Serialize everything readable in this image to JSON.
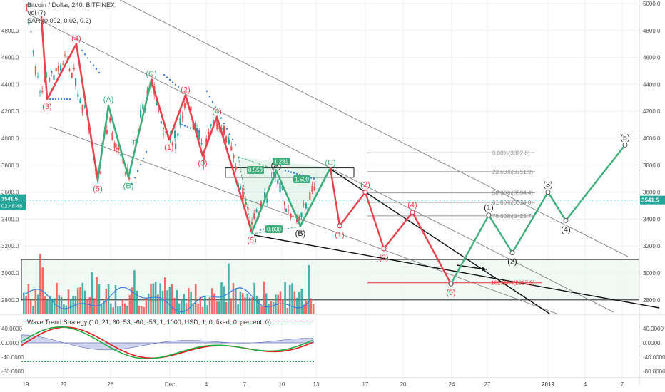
{
  "header": {
    "symbol": "Bitcoin / Dollar, 240, BITFINEX",
    "vol": "Vol (7)",
    "sar": "SAR (0.002, 0.02, 0.2)",
    "wavetrend": "Wave Trend Strategy (10, 21, 60, 53, -60, -53, 1, 1000, USD, 1, 0, fixed, 0, percent, 0)"
  },
  "colors": {
    "impulse_red": "#e8434d",
    "correction_green": "#3fae7a",
    "sar": "#3b7ddd",
    "channel": "#8c8c8c",
    "price_line": "#26a69a",
    "fib_target": "#e53935",
    "volume_up": "#26a69a",
    "volume_down": "#ef5350",
    "wt1": "#1faa3f",
    "wt2": "#e01b1b"
  },
  "chart_data": [
    {
      "type": "line",
      "title": "Bitcoin / Dollar, 240, BITFINEX",
      "y_axis_ticks": [
        "5000.0",
        "4800.0",
        "4600.0",
        "4400.0",
        "4200.0",
        "4000.0",
        "3800.0",
        "3600.0",
        "3400.0",
        "3200.0",
        "3000.0",
        "2800.0"
      ],
      "x_axis_ticks": [
        "19",
        "22",
        "26",
        "Dec",
        "4",
        "7",
        "10",
        "13",
        "17",
        "20",
        "24",
        "27",
        "2019",
        "4",
        "7"
      ],
      "ylim": [
        2650,
        5030
      ],
      "last_price": {
        "price": "3541.5",
        "countdown": "02:48:48",
        "value": 3541.5
      },
      "fib_levels": [
        {
          "label": "0.00%(3892.8)",
          "value": 3892.8
        },
        {
          "label": "23.60%(3751.9)",
          "value": 3751.9
        },
        {
          "label": "50.00%(3594.4)",
          "value": 3594.4
        },
        {
          "label": "61.80%(3524.0)",
          "value": 3524.0
        },
        {
          "label": "78.60%(3423.7)",
          "value": 3423.7
        },
        {
          "label": "161.80%(2927.3)",
          "value": 2927.3
        }
      ],
      "historical_wave_labels": [
        {
          "label": "(4)",
          "value": 4700
        },
        {
          "label": "(3)",
          "value": 4290
        },
        {
          "label": "(5)",
          "value": 3680
        },
        {
          "label": "(A)",
          "value": 4250
        },
        {
          "label": "(B)",
          "value": 3700
        },
        {
          "label": "(C)",
          "value": 4440
        },
        {
          "label": "(1)",
          "value": 3990
        },
        {
          "label": "(2)",
          "value": 4320
        },
        {
          "label": "(3)",
          "value": 3870
        },
        {
          "label": "(4)",
          "value": 4160
        },
        {
          "label": "(5)",
          "value": 3300
        },
        {
          "label": "(A)",
          "value": 3760
        },
        {
          "label": "(B)",
          "value": 3350
        },
        {
          "label": "(C)",
          "value": 3780
        }
      ],
      "harmonic_ratios": [
        "0.553",
        "1.281",
        "1.509",
        "0.808"
      ],
      "projection": {
        "red_path": [
          {
            "label": "(C)",
            "value": 3780
          },
          {
            "label": "(1)",
            "value": 3350
          },
          {
            "label": "(2)",
            "value": 3600
          },
          {
            "label": "(3)",
            "value": 3180
          },
          {
            "label": "(4)",
            "value": 3450
          },
          {
            "label": "(5)",
            "value": 2920
          }
        ],
        "green_path": [
          {
            "label": "(5)",
            "value": 2920
          },
          {
            "label": "(1)",
            "value": 3430
          },
          {
            "label": "(2)",
            "value": 3150
          },
          {
            "label": "(3)",
            "value": 3600
          },
          {
            "label": "(4)",
            "value": 3390
          },
          {
            "label": "(5)",
            "value": 3950
          }
        ]
      },
      "grid": true
    },
    {
      "type": "bar",
      "title": "Vol (7)"
    },
    {
      "type": "line",
      "title": "Wave Trend Strategy (10, 21, 60, 53, -60, -53, 1, 1000, USD, 1, 0, fixed, 0, percent, 0)",
      "y_axis_ticks": [
        "40.0000",
        "0.0000",
        "-40.0000",
        "-80.0000"
      ],
      "ylim": [
        -100,
        60
      ],
      "levels": [
        53,
        -53
      ]
    }
  ]
}
